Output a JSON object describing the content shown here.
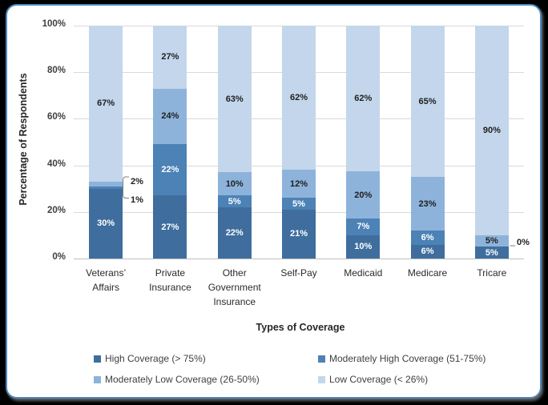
{
  "colors": {
    "frame_border": "#4E86C0",
    "chart_background": "#FFFFFF",
    "outside_background": "#000000",
    "gridline": "#D9D9D9",
    "axis_line": "#BFBFBF",
    "tick_text": "#3F3F3F",
    "dark_label_text": "#1F1F1F",
    "white_label_text": "#FFFFFF",
    "callout_line": "#7F7F7F"
  },
  "chart_data": {
    "type": "bar",
    "stacked": true,
    "percent_stacked": true,
    "title": "",
    "xlabel": "Types of Coverage",
    "ylabel": "Percentage of Respondents",
    "categories": [
      "Veterans’ Affairs",
      "Private Insurance",
      "Other Government Insurance",
      "Self-Pay",
      "Medicaid",
      "Medicare",
      "Tricare"
    ],
    "category_lines": [
      [
        "Veterans’",
        "Affairs"
      ],
      [
        "Private",
        "Insurance"
      ],
      [
        "Other",
        "Government",
        "Insurance"
      ],
      [
        "Self-Pay"
      ],
      [
        "Medicaid"
      ],
      [
        "Medicare"
      ],
      [
        "Tricare"
      ]
    ],
    "series": [
      {
        "name": "High Coverage (> 75%)",
        "color": "#3F6E9E",
        "label_color": "#FFFFFF",
        "values": [
          30,
          27,
          22,
          21,
          10,
          6,
          5
        ]
      },
      {
        "name": "Moderately High Coverage (51-75%)",
        "color": "#4C82B6",
        "label_color": "#FFFFFF",
        "values": [
          1,
          22,
          5,
          5,
          7,
          6,
          0
        ]
      },
      {
        "name": "Moderately Low Coverage (26-50%)",
        "color": "#8EB3DB",
        "label_color": "#1F1F1F",
        "values": [
          2,
          24,
          10,
          12,
          20,
          23,
          5
        ]
      },
      {
        "name": "Low Coverage (< 26%)",
        "color": "#C3D6EB",
        "label_color": "#1F1F1F",
        "values": [
          67,
          27,
          63,
          62,
          62,
          65,
          90
        ]
      }
    ],
    "yticks": [
      "0%",
      "20%",
      "40%",
      "60%",
      "80%",
      "100%"
    ],
    "ylim": [
      0,
      100
    ],
    "grid": true,
    "legend_position": "bottom",
    "outside_callouts": [
      {
        "category_index": 0,
        "series_index": 2,
        "label": "2%"
      },
      {
        "category_index": 0,
        "series_index": 1,
        "label": "1%"
      },
      {
        "category_index": 6,
        "series_index": 1,
        "label": "0%"
      }
    ]
  }
}
